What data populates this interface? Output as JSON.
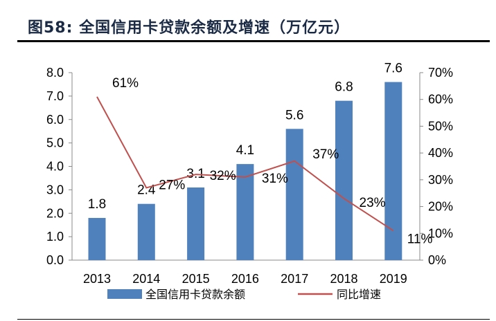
{
  "title": "图58:  全国信用卡贷款余额及增速（万亿元）",
  "chart_data": {
    "type": "bar+line",
    "categories": [
      "2013",
      "2014",
      "2015",
      "2016",
      "2017",
      "2018",
      "2019"
    ],
    "series": [
      {
        "name": "全国信用卡贷款余额",
        "type": "bar",
        "axis": "left",
        "values": [
          1.8,
          2.4,
          3.1,
          4.1,
          5.6,
          6.8,
          7.6
        ],
        "labels": [
          "1.8",
          "2.4",
          "3.1",
          "4.1",
          "5.6",
          "6.8",
          "7.6"
        ],
        "color": "#4f81bd"
      },
      {
        "name": "同比增速",
        "type": "line",
        "axis": "right",
        "values": [
          61,
          27,
          32,
          31,
          37,
          23,
          11
        ],
        "labels": [
          "61%",
          "27%",
          "32%",
          "31%",
          "37%",
          "23%",
          "11%"
        ],
        "color": "#c0504d"
      }
    ],
    "left_axis": {
      "range": [
        0,
        8
      ],
      "ticks": [
        "0.0",
        "1.0",
        "2.0",
        "3.0",
        "4.0",
        "5.0",
        "6.0",
        "7.0",
        "8.0"
      ]
    },
    "right_axis": {
      "range": [
        0,
        70
      ],
      "unit": "%",
      "ticks": [
        "0%",
        "10%",
        "20%",
        "30%",
        "40%",
        "50%",
        "60%",
        "70%"
      ]
    },
    "grid": false,
    "legend": "bottom"
  }
}
